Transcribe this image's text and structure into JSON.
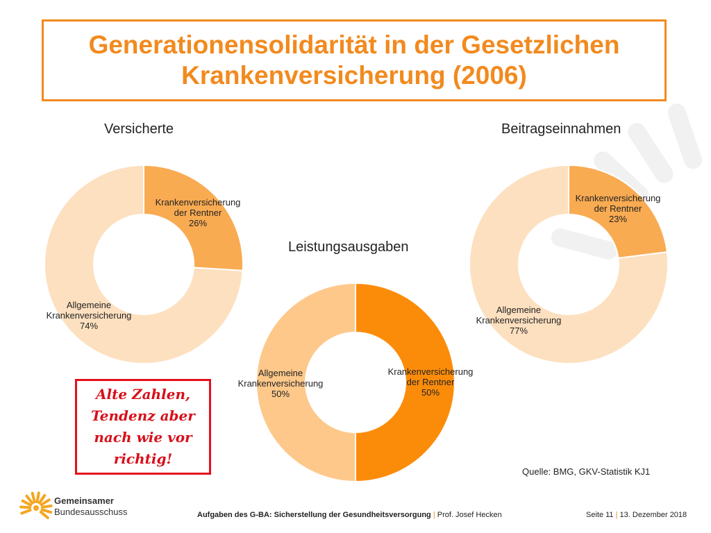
{
  "slide": {
    "title_line1": "Generationensolidarität in der Gesetzlichen",
    "title_line2": "Krankenversicherung (2006)",
    "note": "Alte Zahlen,\nTendenz aber\nnach wie vor\nrichtig!",
    "source": "Quelle: BMG, GKV-Statistik KJ1",
    "colors": {
      "accent": "#f28a1e",
      "note_red": "#d6101a"
    }
  },
  "logo": {
    "line1": "Gemeinsamer",
    "line2": "Bundesausschuss"
  },
  "footer": {
    "presentation": "Aufgaben des G-BA: Sicherstellung der Gesundheitsversorgung",
    "separator": "|",
    "author": "Prof. Josef Hecken",
    "page": "Seite 11",
    "date": "13. Dezember 2018"
  },
  "chart_data": [
    {
      "type": "pie",
      "title": "Versicherte",
      "categories": [
        "Krankenversicherung der Rentner",
        "Allgemeine Krankenversicherung"
      ],
      "values": [
        26,
        74
      ],
      "value_labels": [
        "26%",
        "74%"
      ],
      "colors": [
        "#f9ab52",
        "#fde0bf"
      ]
    },
    {
      "type": "pie",
      "title": "Leistungsausgaben",
      "categories": [
        "Krankenversicherung der Rentner",
        "Allgemeine Krankenversicherung"
      ],
      "values": [
        50,
        50
      ],
      "value_labels": [
        "50%",
        "50%"
      ],
      "colors": [
        "#fb8c0a",
        "#fdc88a"
      ]
    },
    {
      "type": "pie",
      "title": "Beitragseinnahmen",
      "categories": [
        "Krankenversicherung der Rentner",
        "Allgemeine Krankenversicherung"
      ],
      "values": [
        23,
        77
      ],
      "value_labels": [
        "23%",
        "77%"
      ],
      "colors": [
        "#f9ab52",
        "#fde0bf"
      ]
    }
  ]
}
